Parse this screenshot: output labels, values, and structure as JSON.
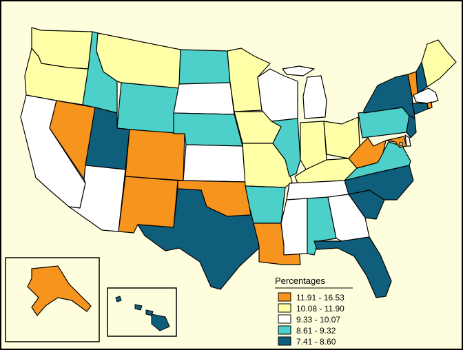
{
  "legend": {
    "title": "Percentages",
    "classes": [
      {
        "label": "11.91 - 16.53",
        "color": "#f7941d"
      },
      {
        "label": "10.08 - 11.90",
        "color": "#ffffa8"
      },
      {
        "label": "9.33 - 10.07",
        "color": "#ffffff"
      },
      {
        "label": "8.61 - 9.32",
        "color": "#4dcfca"
      },
      {
        "label": "7.41 - 8.60",
        "color": "#0f5e7c"
      }
    ]
  },
  "states": [
    {
      "id": "WA",
      "class": 1
    },
    {
      "id": "OR",
      "class": 1
    },
    {
      "id": "CA",
      "class": 2
    },
    {
      "id": "NV",
      "class": 0
    },
    {
      "id": "ID",
      "class": 3
    },
    {
      "id": "MT",
      "class": 1
    },
    {
      "id": "WY",
      "class": 3
    },
    {
      "id": "UT",
      "class": 4
    },
    {
      "id": "AZ",
      "class": 2
    },
    {
      "id": "CO",
      "class": 0
    },
    {
      "id": "NM",
      "class": 0
    },
    {
      "id": "ND",
      "class": 3
    },
    {
      "id": "SD",
      "class": 2
    },
    {
      "id": "NE",
      "class": 3
    },
    {
      "id": "KS",
      "class": 2
    },
    {
      "id": "OK",
      "class": 0
    },
    {
      "id": "TX",
      "class": 4
    },
    {
      "id": "MN",
      "class": 1
    },
    {
      "id": "IA",
      "class": 1
    },
    {
      "id": "MO",
      "class": 1
    },
    {
      "id": "AR",
      "class": 3
    },
    {
      "id": "LA",
      "class": 0
    },
    {
      "id": "WI",
      "class": 2
    },
    {
      "id": "IL",
      "class": 3
    },
    {
      "id": "MI",
      "class": 2
    },
    {
      "id": "IN",
      "class": 1
    },
    {
      "id": "OH",
      "class": 1
    },
    {
      "id": "KY",
      "class": 1
    },
    {
      "id": "TN",
      "class": 2
    },
    {
      "id": "MS",
      "class": 2
    },
    {
      "id": "AL",
      "class": 3
    },
    {
      "id": "GA",
      "class": 2
    },
    {
      "id": "FL",
      "class": 4
    },
    {
      "id": "SC",
      "class": 4
    },
    {
      "id": "NC",
      "class": 4
    },
    {
      "id": "VA",
      "class": 3
    },
    {
      "id": "WV",
      "class": 0
    },
    {
      "id": "PA",
      "class": 3
    },
    {
      "id": "NY",
      "class": 4
    },
    {
      "id": "VT",
      "class": 0
    },
    {
      "id": "NH",
      "class": 4
    },
    {
      "id": "ME",
      "class": 1
    },
    {
      "id": "MA",
      "class": 2
    },
    {
      "id": "RI",
      "class": 0
    },
    {
      "id": "CT",
      "class": 4
    },
    {
      "id": "NJ",
      "class": 4
    },
    {
      "id": "DE",
      "class": 2
    },
    {
      "id": "MD",
      "class": 0
    },
    {
      "id": "DC",
      "class": 2
    },
    {
      "id": "AK",
      "class": 0
    },
    {
      "id": "HI",
      "class": 4
    }
  ]
}
